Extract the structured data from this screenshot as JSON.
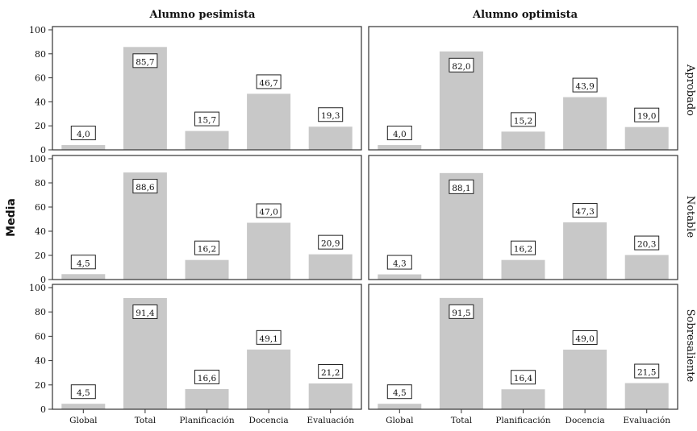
{
  "chart_data": {
    "type": "bar",
    "ylabel": "Media",
    "ylim": [
      0,
      100
    ],
    "yticks": [
      0,
      20,
      40,
      60,
      80,
      100
    ],
    "categories": [
      "Global",
      "Total",
      "Planificación",
      "Docencia",
      "Evaluación"
    ],
    "columns": [
      "Alumno pesimista",
      "Alumno optimista"
    ],
    "rows": [
      "Aprobado",
      "Notable",
      "Sobresaliente"
    ],
    "bar_color": "#c8c8c8",
    "panels": [
      {
        "column": "Alumno pesimista",
        "row": "Aprobado",
        "values": [
          4.0,
          85.7,
          15.7,
          46.7,
          19.3
        ],
        "labels": [
          "4,0",
          "85,7",
          "15,7",
          "46,7",
          "19,3"
        ]
      },
      {
        "column": "Alumno optimista",
        "row": "Aprobado",
        "values": [
          4.0,
          82.0,
          15.2,
          43.9,
          19.0
        ],
        "labels": [
          "4,0",
          "82,0",
          "15,2",
          "43,9",
          "19,0"
        ]
      },
      {
        "column": "Alumno pesimista",
        "row": "Notable",
        "values": [
          4.5,
          88.6,
          16.2,
          47.0,
          20.9
        ],
        "labels": [
          "4,5",
          "88,6",
          "16,2",
          "47,0",
          "20,9"
        ]
      },
      {
        "column": "Alumno optimista",
        "row": "Notable",
        "values": [
          4.3,
          88.1,
          16.2,
          47.3,
          20.3
        ],
        "labels": [
          "4,3",
          "88,1",
          "16,2",
          "47,3",
          "20,3"
        ]
      },
      {
        "column": "Alumno pesimista",
        "row": "Sobresaliente",
        "values": [
          4.5,
          91.4,
          16.6,
          49.1,
          21.2
        ],
        "labels": [
          "4,5",
          "91,4",
          "16,6",
          "49,1",
          "21,2"
        ]
      },
      {
        "column": "Alumno optimista",
        "row": "Sobresaliente",
        "values": [
          4.5,
          91.5,
          16.4,
          49.0,
          21.5
        ],
        "labels": [
          "4,5",
          "91,5",
          "16,4",
          "49,0",
          "21,5"
        ]
      }
    ]
  }
}
